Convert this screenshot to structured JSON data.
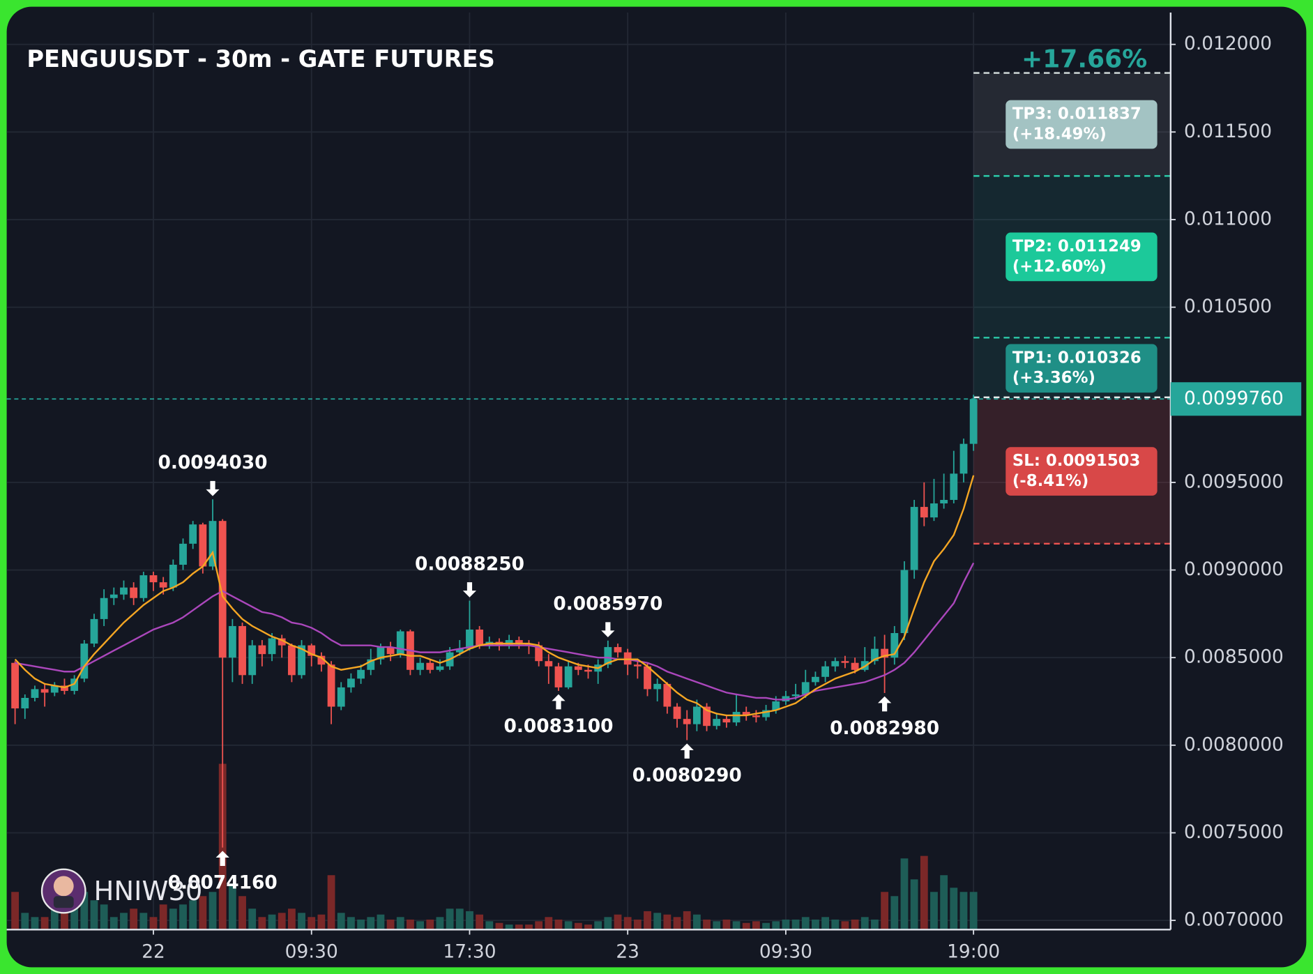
{
  "chart_data": {
    "type": "candlestick",
    "title": "PENGUUSDT - 30m - GATE FUTURES",
    "watermark": "HNIW30",
    "target_pct_label": "+17.66%",
    "categories": [
      null,
      null,
      null,
      null,
      null,
      null,
      null,
      null,
      null,
      null,
      null,
      null,
      null,
      null,
      "22",
      null,
      null,
      null,
      null,
      null,
      null,
      null,
      null,
      null,
      null,
      null,
      null,
      null,
      null,
      null,
      "09:30",
      null,
      null,
      null,
      null,
      null,
      null,
      null,
      null,
      null,
      null,
      null,
      null,
      null,
      null,
      null,
      "17:30",
      null,
      null,
      null,
      null,
      null,
      null,
      null,
      null,
      null,
      null,
      null,
      null,
      null,
      null,
      null,
      "23",
      null,
      null,
      null,
      null,
      null,
      null,
      null,
      null,
      null,
      null,
      null,
      null,
      null,
      null,
      null,
      "09:30",
      null,
      null,
      null,
      null,
      null,
      null,
      null,
      null,
      null,
      null,
      null,
      null,
      null,
      null,
      null,
      null,
      null,
      null,
      "19:00"
    ],
    "open": [
      0.00847,
      0.00821,
      0.00827,
      0.00832,
      0.0083,
      0.00834,
      0.00831,
      0.00838,
      0.00858,
      0.00872,
      0.00884,
      0.00886,
      0.0089,
      0.00884,
      0.00897,
      0.00893,
      0.0089,
      0.00903,
      0.00915,
      0.00926,
      0.00902,
      0.00928,
      0.0085,
      0.00868,
      0.0084,
      0.00857,
      0.00852,
      0.00861,
      0.00857,
      0.0084,
      0.00857,
      0.00851,
      0.00846,
      0.00822,
      0.00833,
      0.00838,
      0.00843,
      0.00849,
      0.00856,
      0.00852,
      0.00865,
      0.00843,
      0.00847,
      0.00843,
      0.00845,
      0.00853,
      0.00855,
      0.00866,
      0.00857,
      0.00859,
      0.00857,
      0.0086,
      0.00858,
      0.00857,
      0.00848,
      0.00845,
      0.00833,
      0.00845,
      0.00843,
      0.00842,
      0.00846,
      0.00856,
      0.00853,
      0.00846,
      0.00845,
      0.00832,
      0.00835,
      0.00822,
      0.00815,
      0.00812,
      0.00822,
      0.00811,
      0.00815,
      0.00813,
      0.00819,
      0.00817,
      0.00816,
      0.0082,
      0.00825,
      0.00828,
      0.00829,
      0.00836,
      0.00839,
      0.00845,
      0.00848,
      0.00847,
      0.00843,
      0.00848,
      0.00855,
      0.0085,
      0.00864,
      0.009,
      0.00936,
      0.0093,
      0.00938,
      0.0094,
      0.00955,
      0.00972
    ],
    "high": [
      0.00848,
      0.00829,
      0.00834,
      0.00835,
      0.00836,
      0.00838,
      0.0084,
      0.0086,
      0.00875,
      0.00889,
      0.0089,
      0.00894,
      0.00893,
      0.00899,
      0.00899,
      0.00896,
      0.00906,
      0.00918,
      0.00928,
      0.00927,
      0.009403,
      0.00929,
      0.00872,
      0.0087,
      0.0086,
      0.0086,
      0.00864,
      0.00863,
      0.00858,
      0.0086,
      0.00858,
      0.00853,
      0.00848,
      0.00836,
      0.00841,
      0.00846,
      0.00855,
      0.00858,
      0.00859,
      0.00866,
      0.00866,
      0.0085,
      0.00849,
      0.00849,
      0.00856,
      0.0086,
      0.008825,
      0.00868,
      0.00862,
      0.00861,
      0.00863,
      0.00862,
      0.0086,
      0.00859,
      0.00852,
      0.00847,
      0.00848,
      0.00847,
      0.00846,
      0.00849,
      0.008597,
      0.00858,
      0.00855,
      0.00849,
      0.00847,
      0.00838,
      0.00836,
      0.00824,
      0.0082,
      0.00826,
      0.00824,
      0.00818,
      0.00817,
      0.00829,
      0.00822,
      0.0082,
      0.00823,
      0.00828,
      0.00831,
      0.00835,
      0.00843,
      0.00842,
      0.00848,
      0.0085,
      0.00851,
      0.0085,
      0.00856,
      0.00862,
      0.00863,
      0.00868,
      0.00905,
      0.0094,
      0.0095,
      0.00952,
      0.00955,
      0.00968,
      0.00975,
      0.01
    ],
    "low": [
      0.00812,
      0.00815,
      0.00825,
      0.00822,
      0.00828,
      0.00829,
      0.00829,
      0.00836,
      0.00856,
      0.00868,
      0.0088,
      0.00883,
      0.0088,
      0.00882,
      0.00888,
      0.00886,
      0.00888,
      0.009,
      0.00912,
      0.00898,
      0.009,
      0.007416,
      0.00836,
      0.00835,
      0.00835,
      0.00845,
      0.00848,
      0.0085,
      0.00836,
      0.00838,
      0.00845,
      0.00842,
      0.00812,
      0.0082,
      0.0083,
      0.00835,
      0.0084,
      0.00846,
      0.00848,
      0.0085,
      0.0084,
      0.0084,
      0.00841,
      0.00842,
      0.00843,
      0.00851,
      0.00854,
      0.00855,
      0.00855,
      0.00854,
      0.00855,
      0.00855,
      0.00852,
      0.00845,
      0.00835,
      0.00831,
      0.00832,
      0.0084,
      0.00838,
      0.00835,
      0.00844,
      0.0085,
      0.0084,
      0.00838,
      0.00828,
      0.00825,
      0.00818,
      0.0081,
      0.008029,
      0.00808,
      0.00808,
      0.00809,
      0.0081,
      0.00811,
      0.00814,
      0.00813,
      0.00814,
      0.00818,
      0.00823,
      0.00826,
      0.00827,
      0.00834,
      0.00836,
      0.00842,
      0.00844,
      0.00841,
      0.00842,
      0.00846,
      0.008298,
      0.00846,
      0.0086,
      0.00895,
      0.00925,
      0.00928,
      0.00935,
      0.00938,
      0.0095,
      0.00968
    ],
    "close": [
      0.00821,
      0.00827,
      0.00832,
      0.0083,
      0.00834,
      0.00831,
      0.00838,
      0.00858,
      0.00872,
      0.00884,
      0.00886,
      0.0089,
      0.00884,
      0.00897,
      0.00893,
      0.0089,
      0.00903,
      0.00915,
      0.00926,
      0.00902,
      0.00928,
      0.0085,
      0.00868,
      0.0084,
      0.00857,
      0.00852,
      0.00861,
      0.00857,
      0.0084,
      0.00857,
      0.00851,
      0.00846,
      0.00822,
      0.00833,
      0.00838,
      0.00843,
      0.00849,
      0.00856,
      0.00852,
      0.00865,
      0.00843,
      0.00847,
      0.00843,
      0.00845,
      0.00853,
      0.00855,
      0.00866,
      0.00857,
      0.00859,
      0.00857,
      0.0086,
      0.00858,
      0.00857,
      0.00848,
      0.00845,
      0.00833,
      0.00845,
      0.00843,
      0.00842,
      0.00846,
      0.00856,
      0.00853,
      0.00846,
      0.00845,
      0.00832,
      0.00835,
      0.00822,
      0.00815,
      0.00812,
      0.00822,
      0.00811,
      0.00815,
      0.00813,
      0.00819,
      0.00817,
      0.00816,
      0.0082,
      0.00825,
      0.00828,
      0.00829,
      0.00836,
      0.00839,
      0.00845,
      0.00848,
      0.00847,
      0.00843,
      0.00848,
      0.00855,
      0.0085,
      0.00864,
      0.009,
      0.00936,
      0.0093,
      0.00938,
      0.0094,
      0.00955,
      0.00972,
      0.009976
    ],
    "volume": [
      45,
      20,
      15,
      15,
      25,
      20,
      40,
      45,
      35,
      30,
      15,
      20,
      25,
      20,
      15,
      30,
      25,
      30,
      35,
      40,
      45,
      198,
      55,
      40,
      25,
      15,
      18,
      20,
      25,
      20,
      15,
      18,
      65,
      20,
      15,
      12,
      15,
      18,
      12,
      15,
      12,
      10,
      12,
      15,
      25,
      25,
      22,
      18,
      10,
      8,
      6,
      6,
      6,
      10,
      15,
      12,
      10,
      8,
      6,
      10,
      15,
      18,
      15,
      12,
      22,
      20,
      18,
      15,
      22,
      18,
      12,
      10,
      12,
      10,
      8,
      10,
      8,
      10,
      12,
      12,
      15,
      12,
      15,
      12,
      10,
      12,
      15,
      12,
      45,
      40,
      85,
      60,
      88,
      45,
      65,
      50,
      45,
      45
    ],
    "up_color": "#26a69a",
    "down_color": "#ef5350",
    "volume_up_color": "#1e5d57",
    "volume_down_color": "#7b2828",
    "ma_fast": {
      "color": "#f5a623",
      "values": [
        0.00849,
        0.00843,
        0.00838,
        0.00835,
        0.00834,
        0.00833,
        0.00835,
        0.00845,
        0.00852,
        0.00858,
        0.00864,
        0.0087,
        0.00875,
        0.0088,
        0.00884,
        0.00888,
        0.0089,
        0.00893,
        0.00898,
        0.00902,
        0.0091,
        0.00885,
        0.00878,
        0.00872,
        0.00868,
        0.00865,
        0.00862,
        0.0086,
        0.00857,
        0.00855,
        0.00852,
        0.0085,
        0.00845,
        0.00843,
        0.00844,
        0.00845,
        0.00848,
        0.0085,
        0.00851,
        0.00852,
        0.00851,
        0.00851,
        0.00849,
        0.00847,
        0.00849,
        0.00852,
        0.00855,
        0.00857,
        0.00858,
        0.00858,
        0.00858,
        0.00858,
        0.00858,
        0.00857,
        0.00853,
        0.0085,
        0.00848,
        0.00846,
        0.00845,
        0.00844,
        0.00847,
        0.00849,
        0.00849,
        0.00849,
        0.00845,
        0.0084,
        0.00835,
        0.0083,
        0.00826,
        0.00824,
        0.0082,
        0.00818,
        0.00817,
        0.00817,
        0.00817,
        0.00818,
        0.00819,
        0.0082,
        0.00822,
        0.00824,
        0.00828,
        0.00832,
        0.00835,
        0.00838,
        0.0084,
        0.00842,
        0.00845,
        0.00849,
        0.00851,
        0.00852,
        0.00862,
        0.00878,
        0.00893,
        0.00905,
        0.00912,
        0.0092,
        0.00935,
        0.00954
      ]
    },
    "ma_slow": {
      "color": "#ab47bc",
      "values": [
        0.00847,
        0.00846,
        0.00845,
        0.00844,
        0.00843,
        0.00842,
        0.00842,
        0.00845,
        0.00848,
        0.00851,
        0.00854,
        0.00857,
        0.0086,
        0.00863,
        0.00866,
        0.00868,
        0.0087,
        0.00873,
        0.00877,
        0.00881,
        0.00885,
        0.00888,
        0.00885,
        0.00882,
        0.00879,
        0.00876,
        0.00875,
        0.00873,
        0.0087,
        0.00869,
        0.00867,
        0.00864,
        0.0086,
        0.00857,
        0.00857,
        0.00857,
        0.00857,
        0.00856,
        0.00856,
        0.00855,
        0.00854,
        0.00853,
        0.00853,
        0.00853,
        0.00854,
        0.00855,
        0.00856,
        0.00857,
        0.00857,
        0.00857,
        0.00857,
        0.00857,
        0.00857,
        0.00856,
        0.00855,
        0.00854,
        0.00853,
        0.00852,
        0.00851,
        0.0085,
        0.0085,
        0.00849,
        0.00849,
        0.00848,
        0.00847,
        0.00845,
        0.00842,
        0.0084,
        0.00838,
        0.00836,
        0.00834,
        0.00832,
        0.0083,
        0.00829,
        0.00828,
        0.00827,
        0.00827,
        0.00826,
        0.00826,
        0.00827,
        0.00829,
        0.00831,
        0.00832,
        0.00833,
        0.00834,
        0.00835,
        0.00836,
        0.00838,
        0.0084,
        0.00843,
        0.00847,
        0.00853,
        0.0086,
        0.00867,
        0.00874,
        0.00881,
        0.00893,
        0.00904
      ]
    },
    "ylim": [
      0.007,
      0.012
    ],
    "yticks": [
      {
        "value": 0.012,
        "label": "0.012000"
      },
      {
        "value": 0.0115,
        "label": "0.011500"
      },
      {
        "value": 0.011,
        "label": "0.011000"
      },
      {
        "value": 0.0105,
        "label": "0.010500"
      },
      {
        "value": 0.0095,
        "label": "0.0095000"
      },
      {
        "value": 0.009,
        "label": "0.0090000"
      },
      {
        "value": 0.0085,
        "label": "0.0085000"
      },
      {
        "value": 0.008,
        "label": "0.0080000"
      },
      {
        "value": 0.0075,
        "label": "0.0075000"
      },
      {
        "value": 0.007,
        "label": "0.0070000"
      }
    ],
    "grid": true,
    "annotations": [
      {
        "label": "0.0094030",
        "value": 0.009403,
        "index": 20,
        "dir": "down"
      },
      {
        "label": "0.0074160",
        "value": 0.007416,
        "index": 21,
        "dir": "up"
      },
      {
        "label": "0.0088250",
        "value": 0.008825,
        "index": 46,
        "dir": "down"
      },
      {
        "label": "0.0083100",
        "value": 0.00831,
        "index": 55,
        "dir": "up"
      },
      {
        "label": "0.0085970",
        "value": 0.008597,
        "index": 60,
        "dir": "down"
      },
      {
        "label": "0.0080290",
        "value": 0.008029,
        "index": 68,
        "dir": "up"
      },
      {
        "label": "0.0082980",
        "value": 0.008298,
        "index": 88,
        "dir": "up"
      }
    ],
    "price_tag": {
      "value": 0.009976,
      "label": "0.0099760",
      "color": "#26a69a"
    },
    "levels": [
      {
        "label": "TP3: 0.011837",
        "pct": "(+18.49%)",
        "value": 0.011837,
        "box_color": "#a3c3c3",
        "line_color": "#d0d8d8",
        "zone_color": "rgba(255,255,255,0.08)"
      },
      {
        "label": "TP2: 0.011249",
        "pct": "(+12.60%)",
        "value": 0.011249,
        "box_color": "#1cc99a",
        "line_color": "#2bc9a8",
        "zone_color": "rgba(38,166,154,0.12)"
      },
      {
        "label": "TP1: 0.010326",
        "pct": "(+3.36%)",
        "value": 0.010326,
        "box_color": "#1f8f86",
        "line_color": "#2bc9a8",
        "zone_color": "rgba(38,166,154,0.12)"
      },
      {
        "label": "SL: 0.0091503",
        "pct": "(-8.41%)",
        "value": 0.0091503,
        "box_color": "#d84848",
        "line_color": "#ef5350",
        "zone_color": "rgba(239,83,80,0.16)"
      }
    ]
  }
}
